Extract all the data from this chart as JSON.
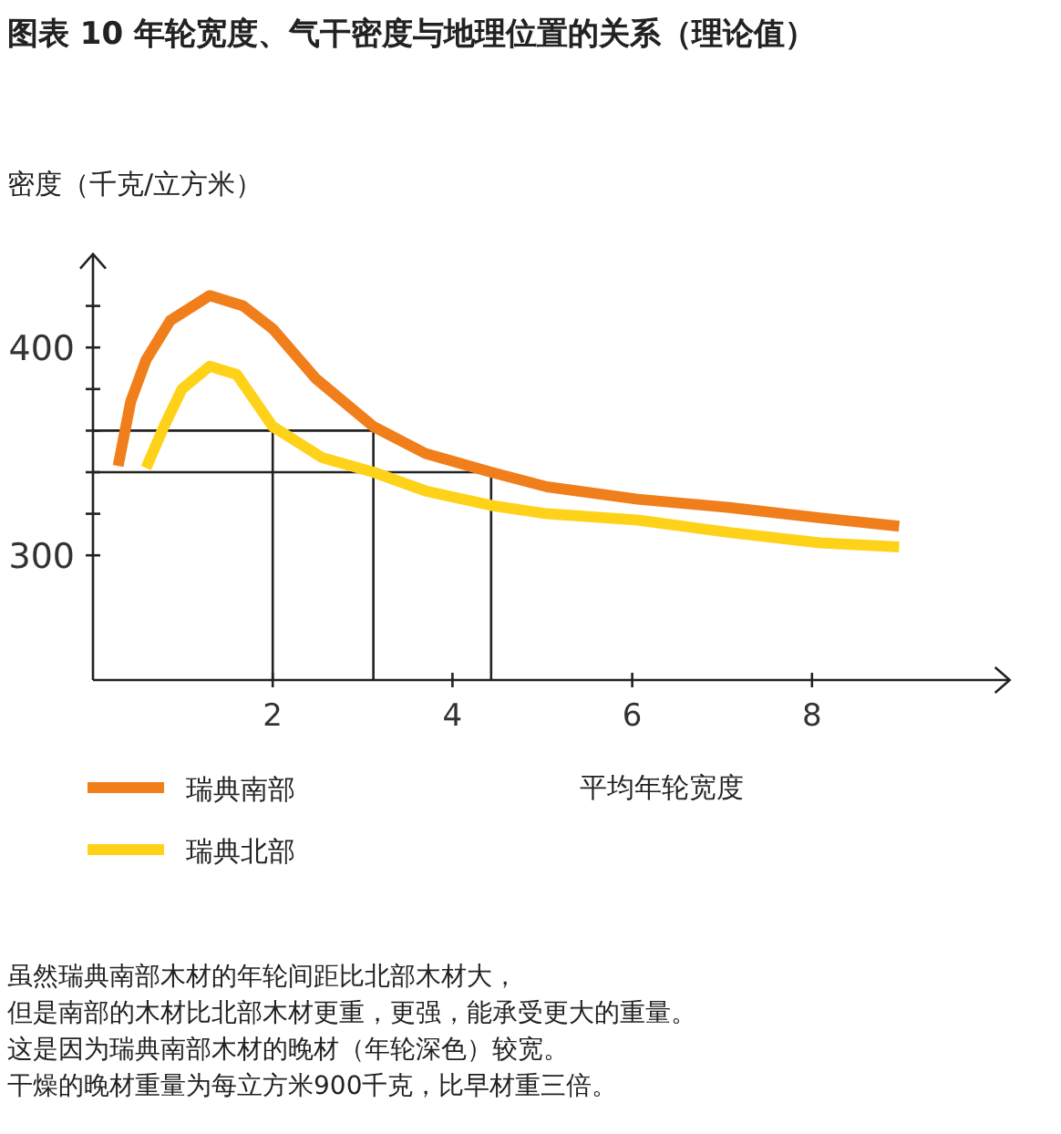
{
  "chart_data": {
    "type": "line",
    "title": "图表 10 年轮宽度、气干密度与地理位置的关系（理论值）",
    "ylabel": "密度（千克/立方米）",
    "xlabel": "平均年轮宽度",
    "xlim": [
      0,
      10.2
    ],
    "ylim": [
      240,
      445
    ],
    "xticks": [
      2,
      4,
      6,
      8
    ],
    "yticks": [
      {
        "value": 300,
        "label": "300"
      },
      {
        "value": 320,
        "label": null
      },
      {
        "value": 340,
        "label": null
      },
      {
        "value": 360,
        "label": null
      },
      {
        "value": 380,
        "label": null
      },
      {
        "value": 400,
        "label": "400"
      },
      {
        "value": 420,
        "label": null
      }
    ],
    "grid": false,
    "legend": "bottom left",
    "line_style": "solid",
    "series": [
      {
        "name": "瑞典南部",
        "color": "#f07f1b",
        "x": [
          0.28,
          0.42,
          0.59,
          0.86,
          1.3,
          1.67,
          2.0,
          2.48,
          3.12,
          3.7,
          4.43,
          5.05,
          6.06,
          7.08,
          8.09,
          8.97
        ],
        "values": [
          343,
          374,
          394,
          413,
          425,
          420,
          409,
          385,
          362,
          349,
          340,
          333,
          327,
          323,
          318,
          314
        ]
      },
      {
        "name": "瑞典北部",
        "color": "#ffd21a",
        "x": [
          0.59,
          0.79,
          0.99,
          1.3,
          1.6,
          2.0,
          2.55,
          3.12,
          3.7,
          4.43,
          5.05,
          6.06,
          7.08,
          8.09,
          8.97
        ],
        "values": [
          342,
          362,
          380,
          391,
          387,
          362,
          347,
          340,
          331,
          324,
          320,
          317,
          311,
          306,
          304
        ]
      },
      {
        "color": "#222222",
        "x": [
          0,
          3.12,
          3.12
        ],
        "values": [
          360,
          360,
          240
        ]
      },
      {
        "color": "#222222",
        "x": [
          2,
          2
        ],
        "values": [
          360,
          240
        ]
      },
      {
        "color": "#222222",
        "x": [
          0,
          4.43,
          4.43
        ],
        "values": [
          340,
          340,
          240
        ]
      }
    ],
    "annotations": [
      "虽然瑞典南部木材的年轮间距比北部木材大，",
      "但是南部的木材比北部木材更重，更强，能承受更大的重量。",
      "这是因为瑞典南部木材的晚材（年轮深色）较宽。",
      "干燥的晚材重量为每立方米900千克，比早材重三倍。"
    ]
  }
}
